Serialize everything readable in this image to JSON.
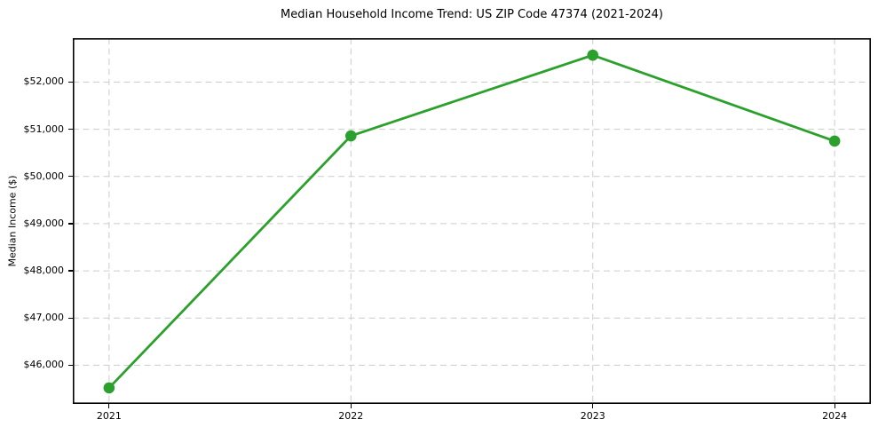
{
  "chart_data": {
    "type": "line",
    "title": "Median Household Income Trend: US ZIP Code 47374 (2021-2024)",
    "xlabel": "",
    "ylabel": "Median Income ($)",
    "x": [
      2021,
      2022,
      2023,
      2024
    ],
    "xtick_labels": [
      "2021",
      "2022",
      "2023",
      "2024"
    ],
    "series": [
      {
        "name": "Median household income",
        "values": [
          45520,
          50860,
          52570,
          50750
        ]
      }
    ],
    "yticks": [
      46000,
      47000,
      48000,
      49000,
      50000,
      51000,
      52000
    ],
    "ytick_labels": [
      "$46,000",
      "$47,000",
      "$48,000",
      "$49,000",
      "$50,000",
      "$51,000",
      "$52,000"
    ],
    "xlim": [
      2020.85,
      2024.15
    ],
    "ylim": [
      45180,
      52930
    ],
    "grid": true,
    "grid_style": "dashed",
    "legend": "none",
    "colors": {
      "line": "#2ca02c",
      "marker": "#2ca02c",
      "grid": "#cccccc",
      "spine": "#000000",
      "text": "#000000",
      "background": "#ffffff"
    }
  }
}
